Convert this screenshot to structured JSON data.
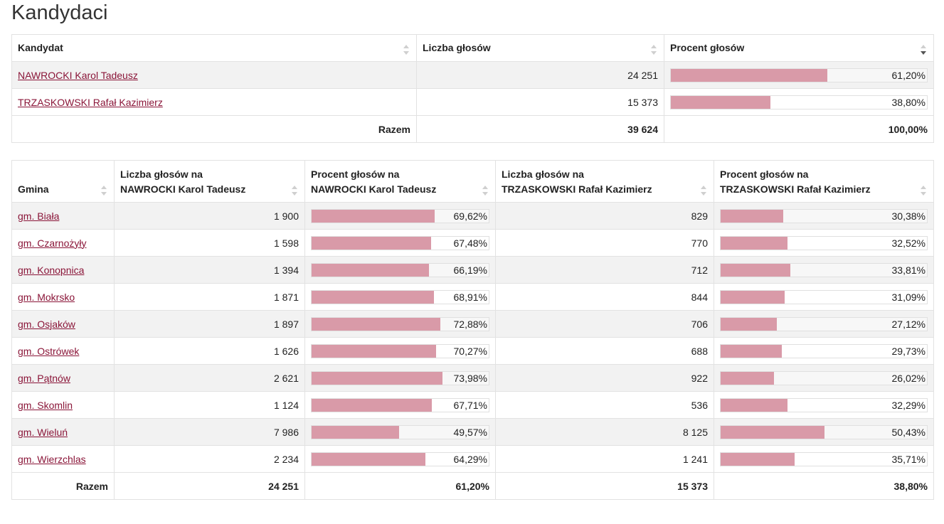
{
  "page_title": "Kandydaci",
  "candidates_table": {
    "headers": [
      "Kandydat",
      "Liczba głosów",
      "Procent głosów"
    ],
    "rows": [
      {
        "name": "NAWROCKI Karol Tadeusz",
        "votes": "24 251",
        "percent": "61,20%",
        "pct_value": 61.2
      },
      {
        "name": "TRZASKOWSKI Rafał Kazimierz",
        "votes": "15 373",
        "percent": "38,80%",
        "pct_value": 38.8
      }
    ],
    "total": {
      "label": "Razem",
      "votes": "39 624",
      "percent": "100,00%"
    }
  },
  "gminy_table": {
    "headers": [
      [
        "Gmina"
      ],
      [
        "Liczba głosów na",
        "NAWROCKI Karol Tadeusz"
      ],
      [
        "Procent głosów na",
        "NAWROCKI Karol Tadeusz"
      ],
      [
        "Liczba głosów na",
        "TRZASKOWSKI Rafał Kazimierz"
      ],
      [
        "Procent głosów na",
        "TRZASKOWSKI Rafał Kazimierz"
      ]
    ],
    "rows": [
      {
        "gmina": "gm. Biała",
        "n_votes": "1 900",
        "n_pct": "69,62%",
        "n_val": 69.62,
        "t_votes": "829",
        "t_pct": "30,38%",
        "t_val": 30.38
      },
      {
        "gmina": "gm. Czarnożyły",
        "n_votes": "1 598",
        "n_pct": "67,48%",
        "n_val": 67.48,
        "t_votes": "770",
        "t_pct": "32,52%",
        "t_val": 32.52
      },
      {
        "gmina": "gm. Konopnica",
        "n_votes": "1 394",
        "n_pct": "66,19%",
        "n_val": 66.19,
        "t_votes": "712",
        "t_pct": "33,81%",
        "t_val": 33.81
      },
      {
        "gmina": "gm. Mokrsko",
        "n_votes": "1 871",
        "n_pct": "68,91%",
        "n_val": 68.91,
        "t_votes": "844",
        "t_pct": "31,09%",
        "t_val": 31.09
      },
      {
        "gmina": "gm. Osjaków",
        "n_votes": "1 897",
        "n_pct": "72,88%",
        "n_val": 72.88,
        "t_votes": "706",
        "t_pct": "27,12%",
        "t_val": 27.12
      },
      {
        "gmina": "gm. Ostrówek",
        "n_votes": "1 626",
        "n_pct": "70,27%",
        "n_val": 70.27,
        "t_votes": "688",
        "t_pct": "29,73%",
        "t_val": 29.73
      },
      {
        "gmina": "gm. Pątnów",
        "n_votes": "2 621",
        "n_pct": "73,98%",
        "n_val": 73.98,
        "t_votes": "922",
        "t_pct": "26,02%",
        "t_val": 26.02
      },
      {
        "gmina": "gm. Skomlin",
        "n_votes": "1 124",
        "n_pct": "67,71%",
        "n_val": 67.71,
        "t_votes": "536",
        "t_pct": "32,29%",
        "t_val": 32.29
      },
      {
        "gmina": "gm. Wieluń",
        "n_votes": "7 986",
        "n_pct": "49,57%",
        "n_val": 49.57,
        "t_votes": "8 125",
        "t_pct": "50,43%",
        "t_val": 50.43
      },
      {
        "gmina": "gm. Wierzchlas",
        "n_votes": "2 234",
        "n_pct": "64,29%",
        "n_val": 64.29,
        "t_votes": "1 241",
        "t_pct": "35,71%",
        "t_val": 35.71
      }
    ],
    "total": {
      "label": "Razem",
      "n_votes": "24 251",
      "n_pct": "61,20%",
      "t_votes": "15 373",
      "t_pct": "38,80%"
    }
  },
  "colors": {
    "link": "#8a1538",
    "bar_fill": "#d99aa8",
    "row_stripe": "#f2f2f2"
  },
  "sort_state": {
    "active_column": "Procent głosów",
    "direction": "descending"
  }
}
